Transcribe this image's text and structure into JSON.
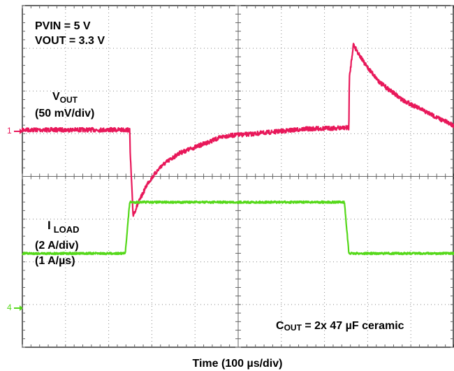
{
  "chart_data": {
    "type": "line",
    "title": "",
    "xlabel": "Time (100 µs/div)",
    "ylabel": "",
    "grid": true,
    "x_divisions": 10,
    "y_divisions": 8,
    "x_unit_per_div_us": 100,
    "annotations": {
      "pvin": "PVIN = 5 V",
      "vout": "VOUT = 3.3 V",
      "cout_main": "C",
      "cout_sub": "OUT",
      "cout_rest": " = 2x 47 µF ceramic"
    },
    "series": [
      {
        "name_main": "V",
        "name_sub": "OUT",
        "scale": "(50 mV/div)",
        "marker": "1",
        "color": "#e8185a",
        "units": "div",
        "x": [
          0,
          4.8,
          4.82,
          4.95,
          5.2,
          5.6,
          6.2,
          7.0,
          8.0,
          9.0,
          9.6,
          10.2,
          12.6,
          14.6,
          14.62,
          14.8,
          15.3,
          16.0,
          17.0,
          18.5,
          19.3
        ],
        "values": [
          0,
          0,
          -0.5,
          -2.0,
          -1.7,
          -1.25,
          -0.85,
          -0.55,
          -0.35,
          -0.15,
          -0.12,
          -0.1,
          0.02,
          0.05,
          1.2,
          2.0,
          1.55,
          1.1,
          0.7,
          0.3,
          0.1
        ]
      },
      {
        "name_main": "I",
        "name_sub": "LOAD",
        "scale": "(2 A/div)",
        "slew": "(1 A/µs)",
        "marker": "4",
        "color": "#55d81a",
        "units": "div",
        "x": [
          0,
          4.6,
          4.8,
          14.4,
          14.6,
          19.3
        ],
        "values": [
          0,
          0,
          1.2,
          1.2,
          0,
          0
        ]
      }
    ]
  }
}
